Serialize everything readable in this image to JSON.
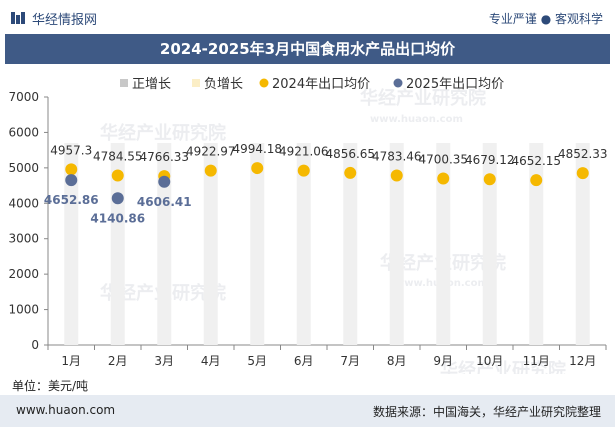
{
  "header": {
    "brand": "华经情报网",
    "tagline": "专业严谨 ● 客观科学"
  },
  "chart_title": "2024-2025年3月中国食用水产品出口均价",
  "unit_label": "单位：美元/吨",
  "footer": {
    "url": "www.huaon.com",
    "source": "数据来源：中国海关，华经产业研究院整理"
  },
  "watermark": {
    "text": "华经产业研究院",
    "url": "www.huaon.com"
  },
  "colors": {
    "title_bg": "#3f5a86",
    "series_2024": "#f5b800",
    "series_2025": "#5b6e97",
    "increase": "#c8c8c8",
    "decrease": "#fbeec6",
    "bar_bg": "#f0f0f0",
    "footer_bg": "#e6ebf2"
  },
  "chart_data": {
    "type": "scatter",
    "categories": [
      "1月",
      "2月",
      "3月",
      "4月",
      "5月",
      "6月",
      "7月",
      "8月",
      "9月",
      "10月",
      "11月",
      "12月"
    ],
    "ylim": [
      0,
      7000
    ],
    "yticks": [
      0,
      1000,
      2000,
      3000,
      4000,
      5000,
      6000,
      7000
    ],
    "grid": false,
    "legend_position": "top",
    "legend": [
      "正增长",
      "负增长",
      "2024年出口均价",
      "2025年出口均价"
    ],
    "series": [
      {
        "name": "2024年出口均价",
        "values": [
          4957.3,
          4784.55,
          4766.33,
          4922.97,
          4994.18,
          4921.06,
          4856.65,
          4783.46,
          4700.35,
          4679.12,
          4652.15,
          4852.33
        ],
        "labels": [
          "4957.3",
          "4784.55",
          "4766.33",
          "4922.97",
          "4994.18",
          "4921.06",
          "4856.65",
          "4783.46",
          "4700.35",
          "4679.12",
          "4652.15",
          "4852.33"
        ]
      },
      {
        "name": "2025年出口均价",
        "values": [
          4652.86,
          4140.86,
          4606.41
        ],
        "labels": [
          "4652.86",
          "4140.86",
          "4606.41"
        ]
      }
    ]
  }
}
